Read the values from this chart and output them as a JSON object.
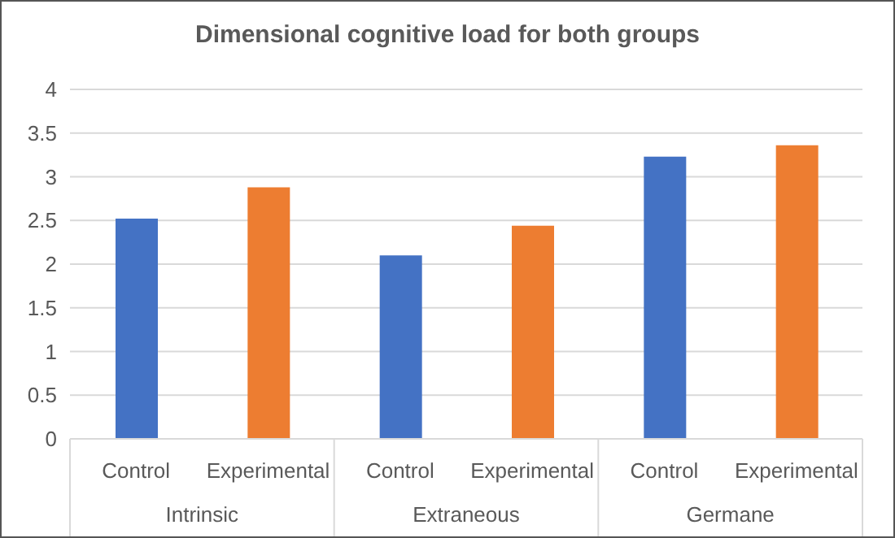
{
  "chart_data": {
    "type": "bar",
    "title": "Dimensional cognitive load for both groups",
    "categories": [
      "Control",
      "Experimental",
      "Control",
      "Experimental",
      "Control",
      "Experimental"
    ],
    "values": [
      2.52,
      2.88,
      2.1,
      2.44,
      3.23,
      3.36
    ],
    "colors": [
      "#4472c4",
      "#ed7d31",
      "#4472c4",
      "#ed7d31",
      "#4472c4",
      "#ed7d31"
    ],
    "annotations": [
      "Intrinsic",
      "Extraneous",
      "Germane"
    ],
    "ylim": [
      0,
      4
    ],
    "yticks": [
      0,
      0.5,
      1,
      1.5,
      2,
      2.5,
      3,
      3.5,
      4
    ],
    "grid": "y"
  }
}
